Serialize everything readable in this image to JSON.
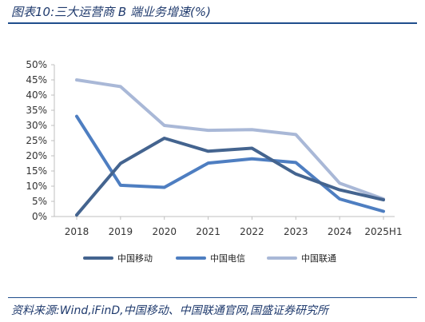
{
  "header": {
    "title": "图表10:三大运营商 B 端业务增速(%)"
  },
  "footer": {
    "source": "资料来源:Wind,iFinD,中国移动、中国联通官网,国盛证券研究所"
  },
  "chart_data": {
    "type": "line",
    "categories": [
      "2018",
      "2019",
      "2020",
      "2021",
      "2022",
      "2023",
      "2024",
      "2025H1"
    ],
    "y_ticks": [
      "0%",
      "5%",
      "10%",
      "15%",
      "20%",
      "25%",
      "30%",
      "35%",
      "40%",
      "45%",
      "50%"
    ],
    "ylim": [
      0,
      50
    ],
    "grid": false,
    "legend_position": "bottom",
    "series": [
      {
        "name": "中国移动",
        "color": "#44648f",
        "values": [
          0.5,
          17.5,
          25.8,
          21.5,
          22.5,
          14.0,
          8.8,
          5.5
        ]
      },
      {
        "name": "中国电信",
        "color": "#4e7ec1",
        "values": [
          33.0,
          10.3,
          9.6,
          17.6,
          19.0,
          17.8,
          5.8,
          1.7
        ]
      },
      {
        "name": "中国联通",
        "color": "#a9b8d7",
        "values": [
          45.0,
          42.8,
          30.0,
          28.4,
          28.6,
          27.0,
          11.0,
          5.8
        ]
      }
    ]
  }
}
